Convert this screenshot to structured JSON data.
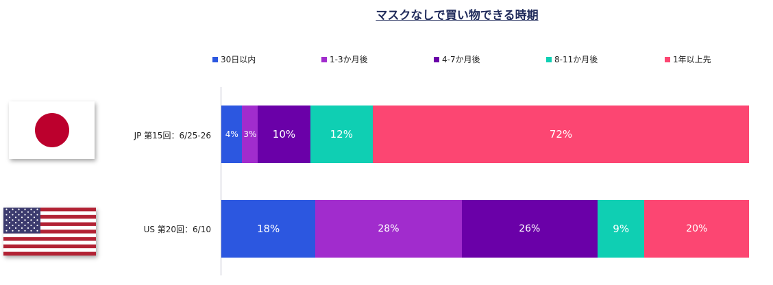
{
  "chart_data": {
    "type": "bar",
    "orientation": "horizontal",
    "stacked": true,
    "title": "マスクなしで買い物できる時期",
    "categories": [
      "JP 第15回：6/25-26",
      "US 第20回：6/10"
    ],
    "series": [
      {
        "name": "30日以内",
        "color": "#2c57e0",
        "values": [
          4,
          18
        ],
        "labels": [
          "4%",
          "18%"
        ]
      },
      {
        "name": "1-3か月後",
        "color": "#a12ccd",
        "values": [
          3,
          28
        ],
        "labels": [
          "3%",
          "28%"
        ]
      },
      {
        "name": "4-7か月後",
        "color": "#6a00a8",
        "values": [
          10,
          26
        ],
        "labels": [
          "10%",
          "26%"
        ]
      },
      {
        "name": "8-11か月後",
        "color": "#0fcfb3",
        "values": [
          12,
          9
        ],
        "labels": [
          "12%",
          "9%"
        ]
      },
      {
        "name": "1年以上先",
        "color": "#fc4672",
        "values": [
          72,
          20
        ],
        "labels": [
          "72%",
          "20%"
        ]
      }
    ],
    "legend_position": "top",
    "grid": false
  },
  "flags": [
    {
      "country": "JP",
      "icon": "japan-flag-icon"
    },
    {
      "country": "US",
      "icon": "us-flag-icon"
    }
  ]
}
